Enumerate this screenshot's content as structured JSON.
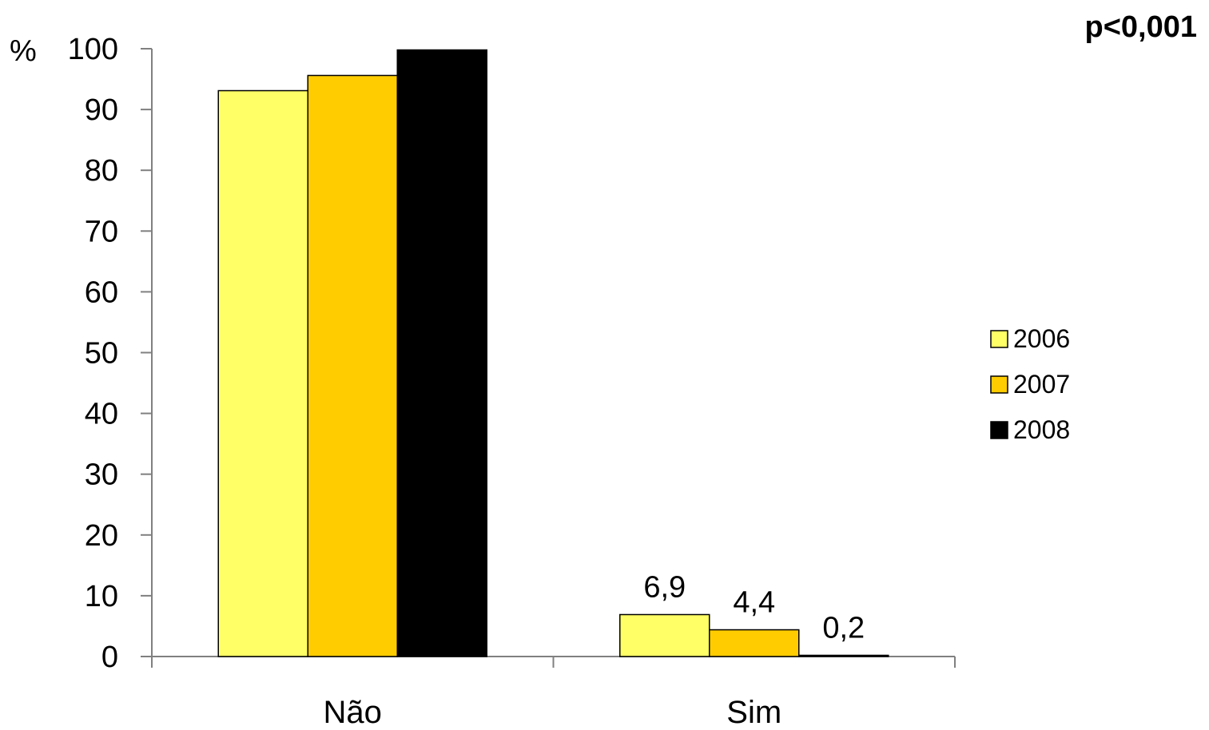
{
  "chart_data": {
    "type": "bar",
    "categories": [
      "Não",
      "Sim"
    ],
    "series": [
      {
        "name": "2006",
        "values": [
          93.1,
          6.9
        ],
        "color": "#FFFF66"
      },
      {
        "name": "2007",
        "values": [
          95.6,
          4.4
        ],
        "color": "#FFCC00"
      },
      {
        "name": "2008",
        "values": [
          99.8,
          0.2
        ],
        "color": "#000000"
      }
    ],
    "data_labels": [
      {
        "category": "Sim",
        "series": "2006",
        "text": "6,9"
      },
      {
        "category": "Sim",
        "series": "2007",
        "text": "4,4"
      },
      {
        "category": "Sim",
        "series": "2008",
        "text": "0,2"
      }
    ],
    "y_unit_label": "%",
    "y_ticks": [
      0,
      10,
      20,
      30,
      40,
      50,
      60,
      70,
      80,
      90,
      100
    ],
    "ylim": [
      0,
      100
    ],
    "annotation": "p<0,001",
    "legend_position": "right",
    "grid": false
  }
}
